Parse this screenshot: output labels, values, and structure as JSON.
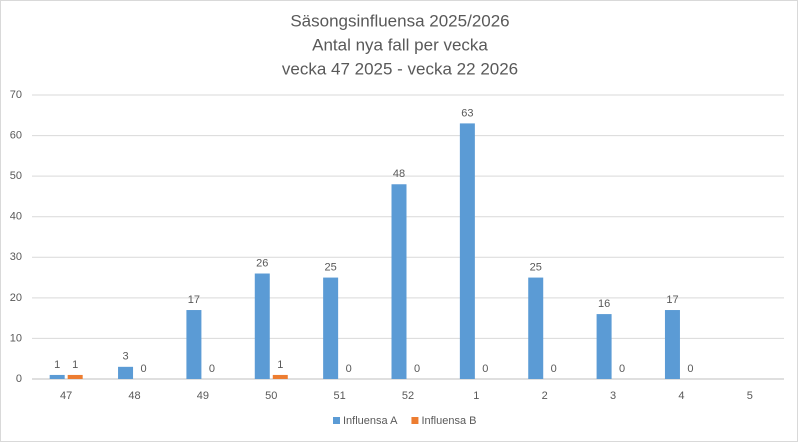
{
  "chart_data": {
    "type": "bar",
    "title": [
      "Säsongsinfluensa 2025/2026",
      "Antal nya fall per vecka",
      "vecka 47 2025 - vecka 22 2026"
    ],
    "categories": [
      "47",
      "48",
      "49",
      "50",
      "51",
      "52",
      "1",
      "2",
      "3",
      "4",
      "5"
    ],
    "series": [
      {
        "name": "Influensa A",
        "color": "#5b9bd5",
        "values": [
          1,
          3,
          17,
          26,
          25,
          48,
          63,
          25,
          16,
          17,
          null
        ]
      },
      {
        "name": "Influensa B",
        "color": "#ed7d31",
        "values": [
          1,
          0,
          0,
          1,
          0,
          0,
          0,
          0,
          0,
          0,
          null
        ]
      }
    ],
    "ylim": [
      0,
      70
    ],
    "yticks": [
      0,
      10,
      20,
      30,
      40,
      50,
      60,
      70
    ],
    "grid": true,
    "legend": "bottom"
  }
}
